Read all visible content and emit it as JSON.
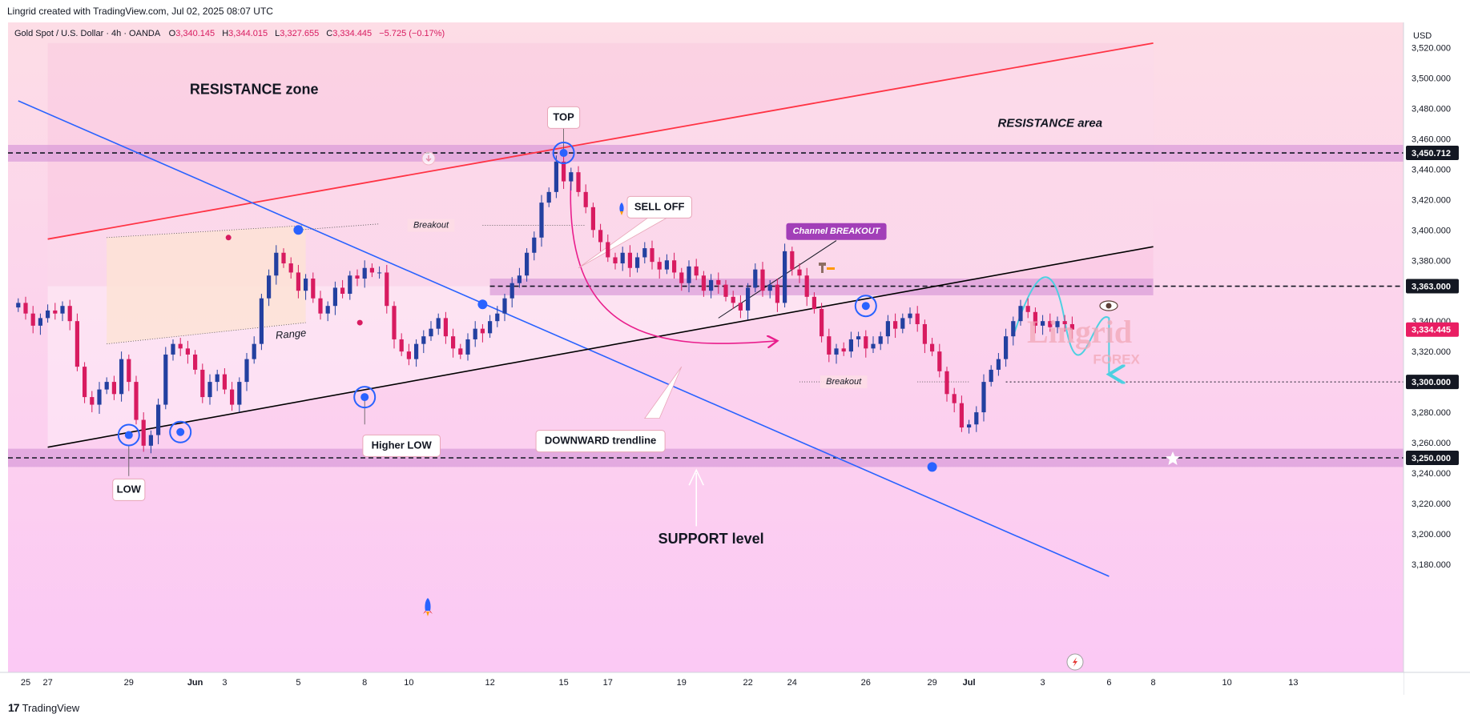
{
  "header": {
    "title": "Lingrid created with TradingView.com, Jul 02, 2025 08:07 UTC"
  },
  "legend": {
    "symbol": "Gold Spot / U.S. Dollar · 4h · OANDA",
    "o_label": "O",
    "o": "3,340.145",
    "h_label": "H",
    "h": "3,344.015",
    "l_label": "L",
    "l": "3,327.655",
    "c_label": "C",
    "c": "3,334.445",
    "change": "−5.725 (−0.17%)"
  },
  "colors": {
    "bg_top": "#fddde6",
    "bg_bottom": "#fbc8f5",
    "bull": "#2340a0",
    "bear": "#d81b60",
    "zone": "#d89ad8",
    "resistance_line": "#ff3344",
    "downtrend": "#2962ff",
    "channel": "#000000",
    "sell_arrow": "#e91e8c",
    "projection": "#4dd0e1",
    "marker_circle": "#2962ff"
  },
  "chart_data": {
    "type": "candlestick",
    "currency": "USD",
    "ylim": [
      3170,
      3530
    ],
    "y_ticks": [
      {
        "v": 3180,
        "label": "3,180.000"
      },
      {
        "v": 3200,
        "label": "3,200.000"
      },
      {
        "v": 3220,
        "label": "3,220.000"
      },
      {
        "v": 3240,
        "label": "3,240.000"
      },
      {
        "v": 3260,
        "label": "3,260.000"
      },
      {
        "v": 3280,
        "label": "3,280.000"
      },
      {
        "v": 3320,
        "label": "3,320.000"
      },
      {
        "v": 3340,
        "label": "3,340.000"
      },
      {
        "v": 3380,
        "label": "3,380.000"
      },
      {
        "v": 3400,
        "label": "3,400.000"
      },
      {
        "v": 3420,
        "label": "3,420.000"
      },
      {
        "v": 3440,
        "label": "3,440.000"
      },
      {
        "v": 3460,
        "label": "3,460.000"
      },
      {
        "v": 3480,
        "label": "3,480.000"
      },
      {
        "v": 3500,
        "label": "3,500.000"
      },
      {
        "v": 3520,
        "label": "3,520.000"
      }
    ],
    "price_tags": [
      {
        "v": 3450.712,
        "label": "3,450.712",
        "style": "dark"
      },
      {
        "v": 3363,
        "label": "3,363.000",
        "style": "dark"
      },
      {
        "v": 3334.445,
        "label": "3,334.445",
        "style": "red"
      },
      {
        "v": 3300,
        "label": "3,300.000",
        "style": "dark"
      },
      {
        "v": 3250,
        "label": "3,250.000",
        "style": "dark"
      }
    ],
    "x_ticks": [
      {
        "i": -15,
        "label": "25"
      },
      {
        "i": -12,
        "label": "27"
      },
      {
        "i": -1,
        "label": "29"
      },
      {
        "i": 8,
        "label": "Jun"
      },
      {
        "i": 12,
        "label": "3"
      },
      {
        "i": 22,
        "label": "5"
      },
      {
        "i": 31,
        "label": "8"
      },
      {
        "i": 37,
        "label": "10"
      },
      {
        "i": 48,
        "label": "12"
      },
      {
        "i": 58,
        "label": "15"
      },
      {
        "i": 64,
        "label": "17"
      },
      {
        "i": 74,
        "label": "19"
      },
      {
        "i": 83,
        "label": "22"
      },
      {
        "i": 89,
        "label": "24"
      },
      {
        "i": 99,
        "label": "26"
      },
      {
        "i": 108,
        "label": "29"
      },
      {
        "i": 113,
        "label": "Jul"
      },
      {
        "i": 123,
        "label": "3"
      },
      {
        "i": 132,
        "label": "6"
      },
      {
        "i": 138,
        "label": "8"
      },
      {
        "i": 148,
        "label": "10"
      },
      {
        "i": 157,
        "label": "13"
      }
    ],
    "candles_start_index": -16,
    "closes": [
      3352,
      3345,
      3337,
      3342,
      3347,
      3345,
      3350,
      3340,
      3310,
      3290,
      3285,
      3295,
      3300,
      3292,
      3315,
      3300,
      3275,
      3258,
      3265,
      3285,
      3318,
      3325,
      3322,
      3318,
      3308,
      3290,
      3300,
      3305,
      3295,
      3285,
      3300,
      3315,
      3325,
      3355,
      3370,
      3385,
      3378,
      3372,
      3360,
      3368,
      3355,
      3345,
      3350,
      3362,
      3358,
      3370,
      3368,
      3375,
      3372,
      3372,
      3350,
      3328,
      3320,
      3315,
      3325,
      3330,
      3335,
      3342,
      3330,
      3322,
      3318,
      3328,
      3335,
      3332,
      3340,
      3345,
      3355,
      3365,
      3370,
      3385,
      3395,
      3418,
      3425,
      3445,
      3432,
      3438,
      3425,
      3415,
      3400,
      3392,
      3382,
      3378,
      3385,
      3375,
      3382,
      3388,
      3379,
      3374,
      3380,
      3372,
      3365,
      3376,
      3370,
      3360,
      3367,
      3364,
      3356,
      3352,
      3347,
      3362,
      3374,
      3360,
      3364,
      3352,
      3386,
      3374,
      3370,
      3356,
      3348,
      3330,
      3318,
      3322,
      3320,
      3328,
      3330,
      3322,
      3325,
      3330,
      3340,
      3335,
      3342,
      3345,
      3338,
      3325,
      3320,
      3307,
      3292,
      3286,
      3270,
      3272,
      3280,
      3300,
      3308,
      3315,
      3330,
      3340,
      3350,
      3346,
      3337,
      3340,
      3336,
      3340,
      3338,
      3334.445
    ],
    "resistance_zone": [
      3445,
      3456
    ],
    "mid_zone": [
      3357,
      3368
    ],
    "support_zone": [
      3244,
      3256
    ],
    "levels": [
      3450.712,
      3363,
      3300,
      3250
    ],
    "resistance_line": {
      "from": [
        -12,
        3394
      ],
      "to": [
        138,
        3523
      ]
    },
    "downward_trendline": {
      "from": [
        -16,
        3485
      ],
      "to": [
        132,
        3172
      ]
    },
    "channel_line": {
      "from": [
        -12,
        3257
      ],
      "to": [
        138,
        3389
      ]
    },
    "range_box": {
      "i0": -4,
      "i1": 23,
      "top": [
        3395,
        3403
      ],
      "bottom": [
        3325,
        3339
      ]
    },
    "annotations": [
      {
        "text": "RESISTANCE zone",
        "i": 16,
        "v": 3492,
        "kind": "bold-plain"
      },
      {
        "text": "RESISTANCE area",
        "i": 124,
        "v": 3470,
        "kind": "italic-plain"
      },
      {
        "text": "TOP",
        "i": 58,
        "v": 3474,
        "kind": "box"
      },
      {
        "text": "SELL OFF",
        "i": 71,
        "v": 3415,
        "kind": "box"
      },
      {
        "text": "Channel BREAKOUT",
        "i": 95,
        "v": 3399,
        "kind": "purple"
      },
      {
        "text": "Breakout",
        "i": 40,
        "v": 3403,
        "kind": "small-italic"
      },
      {
        "text": "Range",
        "i": 21,
        "v": 3331,
        "kind": "italic"
      },
      {
        "text": "Breakout",
        "i": 96,
        "v": 3300,
        "kind": "small-italic"
      },
      {
        "text": "Higher LOW",
        "i": 36,
        "v": 3258,
        "kind": "box"
      },
      {
        "text": "LOW",
        "i": -1,
        "v": 3229,
        "kind": "box"
      },
      {
        "text": "DOWNWARD trendline",
        "i": 63,
        "v": 3261,
        "kind": "box"
      },
      {
        "text": "SUPPORT level",
        "i": 78,
        "v": 3196,
        "kind": "bold-plain"
      }
    ],
    "watermark": {
      "line1": "Lingrid",
      "line2": "FOREX"
    }
  },
  "footer": {
    "brand": "TradingView"
  }
}
